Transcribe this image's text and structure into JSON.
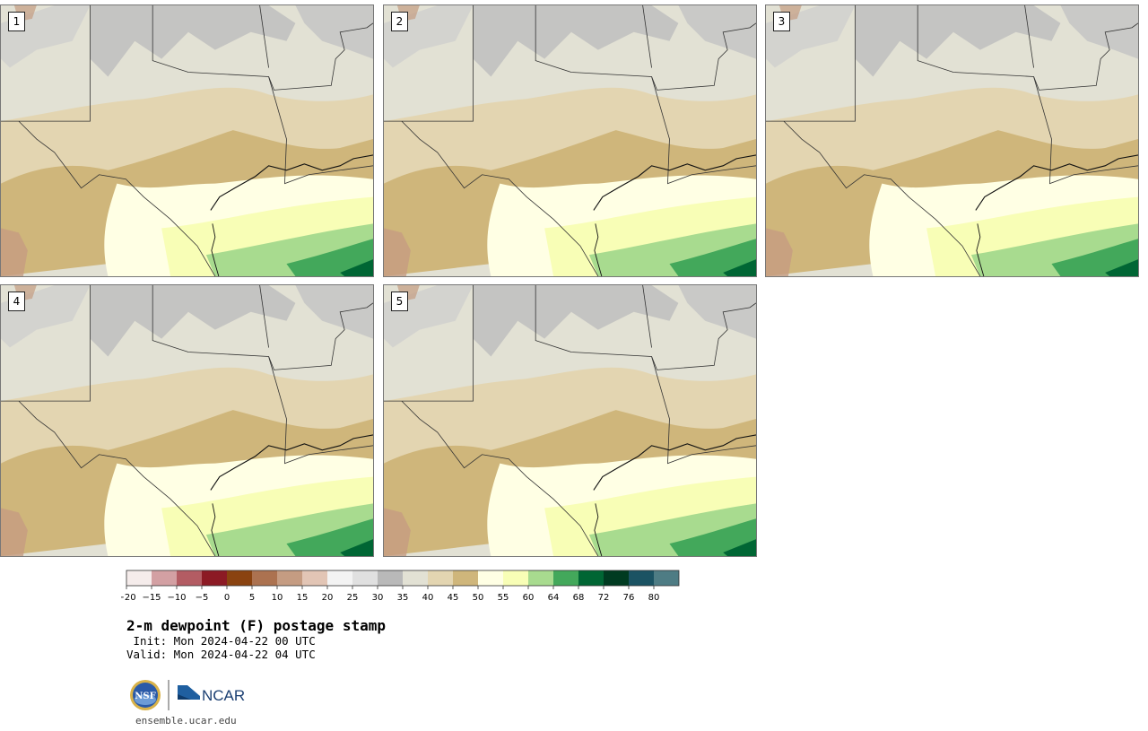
{
  "panels": [
    {
      "label": "1"
    },
    {
      "label": "2"
    },
    {
      "label": "3"
    },
    {
      "label": "4"
    },
    {
      "label": "5"
    }
  ],
  "colorbar": {
    "ticks": [
      "−20",
      "−15",
      "−10",
      "−5",
      "0",
      "5",
      "10",
      "15",
      "20",
      "25",
      "30",
      "35",
      "40",
      "45",
      "50",
      "55",
      "60",
      "64",
      "68",
      "72",
      "76",
      "80"
    ],
    "colors": [
      "#f5eceb",
      "#d3a0a3",
      "#b35c63",
      "#8c1a24",
      "#8a4310",
      "#ac7250",
      "#c59c82",
      "#e2c5b5",
      "#f3f3f3",
      "#e0e0e0",
      "#b9b9b9",
      "#e2e1d4",
      "#e3d5b1",
      "#cfb67b",
      "#ffffe4",
      "#f8feb6",
      "#a8db8f",
      "#43a85b",
      "#006634",
      "#003b21",
      "#1b5363",
      "#4e7c84"
    ]
  },
  "title": "2-m dewpoint (F) postage stamp",
  "init": " Init: Mon 2024-04-22 00 UTC",
  "valid": "Valid: Mon 2024-04-22 04 UTC",
  "logo": {
    "nsf": "NSF",
    "ncar": "NCAR"
  },
  "url": "ensemble.ucar.edu"
}
